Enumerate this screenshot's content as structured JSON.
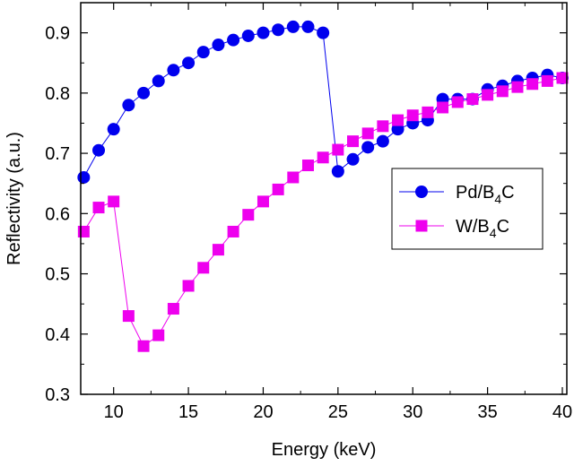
{
  "chart_data": {
    "type": "line",
    "title": "",
    "xlabel": "Energy (keV)",
    "ylabel": "Reflectivity (a.u.)",
    "xlim": [
      7.8,
      40.3
    ],
    "ylim": [
      0.3,
      0.95
    ],
    "x_ticks": [
      10,
      15,
      20,
      25,
      30,
      35,
      40
    ],
    "y_ticks": [
      0.3,
      0.4,
      0.5,
      0.6,
      0.7,
      0.8,
      0.9
    ],
    "x_tick_labels": [
      "10",
      "15",
      "20",
      "25",
      "30",
      "35",
      "40"
    ],
    "y_tick_labels": [
      "0.3",
      "0.4",
      "0.5",
      "0.6",
      "0.7",
      "0.8",
      "0.9"
    ],
    "grid": false,
    "legend": {
      "position": "right-middle",
      "entries": [
        {
          "base": "Pd/B",
          "sub": "4",
          "tail": "C"
        },
        {
          "base": "W/B",
          "sub": "4",
          "tail": "C"
        }
      ]
    },
    "series": [
      {
        "name": "Pd/B4C",
        "color": "#0000ee",
        "marker": "circle",
        "x": [
          8,
          9,
          10,
          11,
          12,
          13,
          14,
          15,
          16,
          17,
          18,
          19,
          20,
          21,
          22,
          23,
          24,
          25,
          26,
          27,
          28,
          29,
          30,
          31,
          32,
          33,
          34,
          35,
          36,
          37,
          38,
          39,
          40
        ],
        "y": [
          0.66,
          0.705,
          0.74,
          0.78,
          0.8,
          0.82,
          0.838,
          0.85,
          0.868,
          0.88,
          0.888,
          0.895,
          0.9,
          0.905,
          0.91,
          0.91,
          0.9,
          0.67,
          0.69,
          0.71,
          0.72,
          0.74,
          0.75,
          0.755,
          0.79,
          0.79,
          0.79,
          0.806,
          0.812,
          0.82,
          0.825,
          0.83,
          0.825
        ]
      },
      {
        "name": "W/B4C",
        "color": "#ee00ee",
        "marker": "square",
        "x": [
          8,
          9,
          10,
          11,
          12,
          13,
          14,
          15,
          16,
          17,
          18,
          19,
          20,
          21,
          22,
          23,
          24,
          25,
          26,
          27,
          28,
          29,
          30,
          31,
          32,
          33,
          34,
          35,
          36,
          37,
          38,
          39,
          40
        ],
        "y": [
          0.57,
          0.61,
          0.62,
          0.43,
          0.38,
          0.398,
          0.442,
          0.48,
          0.51,
          0.54,
          0.57,
          0.598,
          0.62,
          0.64,
          0.66,
          0.68,
          0.693,
          0.706,
          0.72,
          0.733,
          0.745,
          0.755,
          0.763,
          0.768,
          0.776,
          0.785,
          0.79,
          0.797,
          0.803,
          0.81,
          0.815,
          0.82,
          0.825
        ]
      }
    ]
  }
}
